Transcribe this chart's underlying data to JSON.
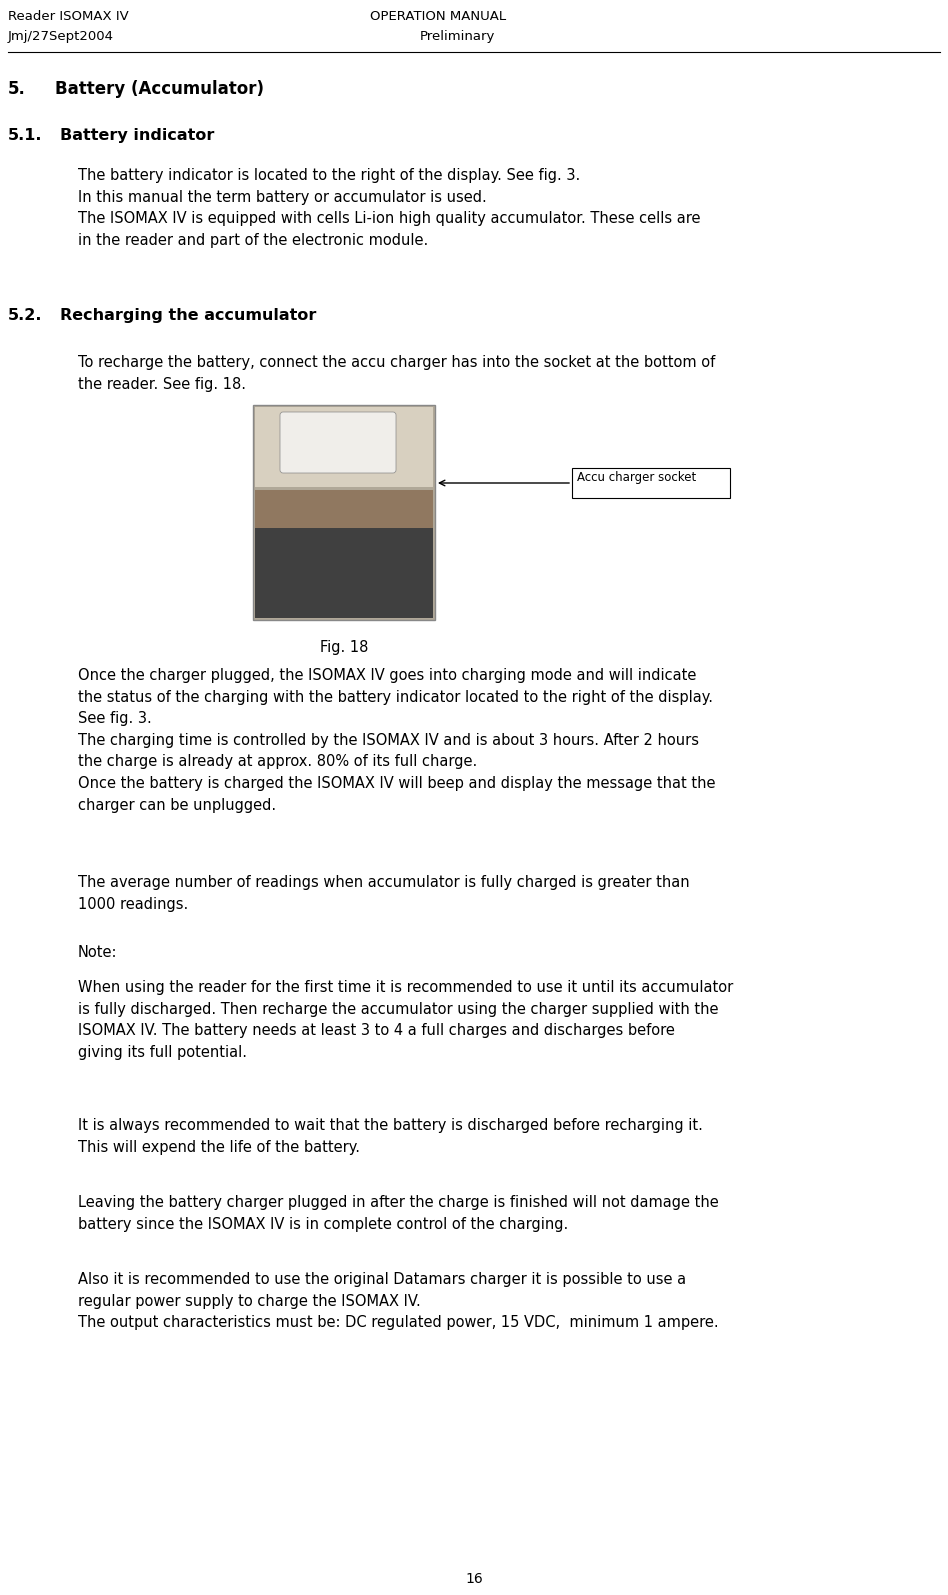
{
  "bg_color": "#ffffff",
  "header_left_line1": "Reader ISOMAX IV",
  "header_center_line1": "OPERATION MANUAL",
  "header_left_line2": "Jmj/27Sept2004",
  "header_center_line2": "Preliminary",
  "fig18_label": "Fig. 18",
  "accu_label": "Accu charger socket",
  "page_number": "16"
}
